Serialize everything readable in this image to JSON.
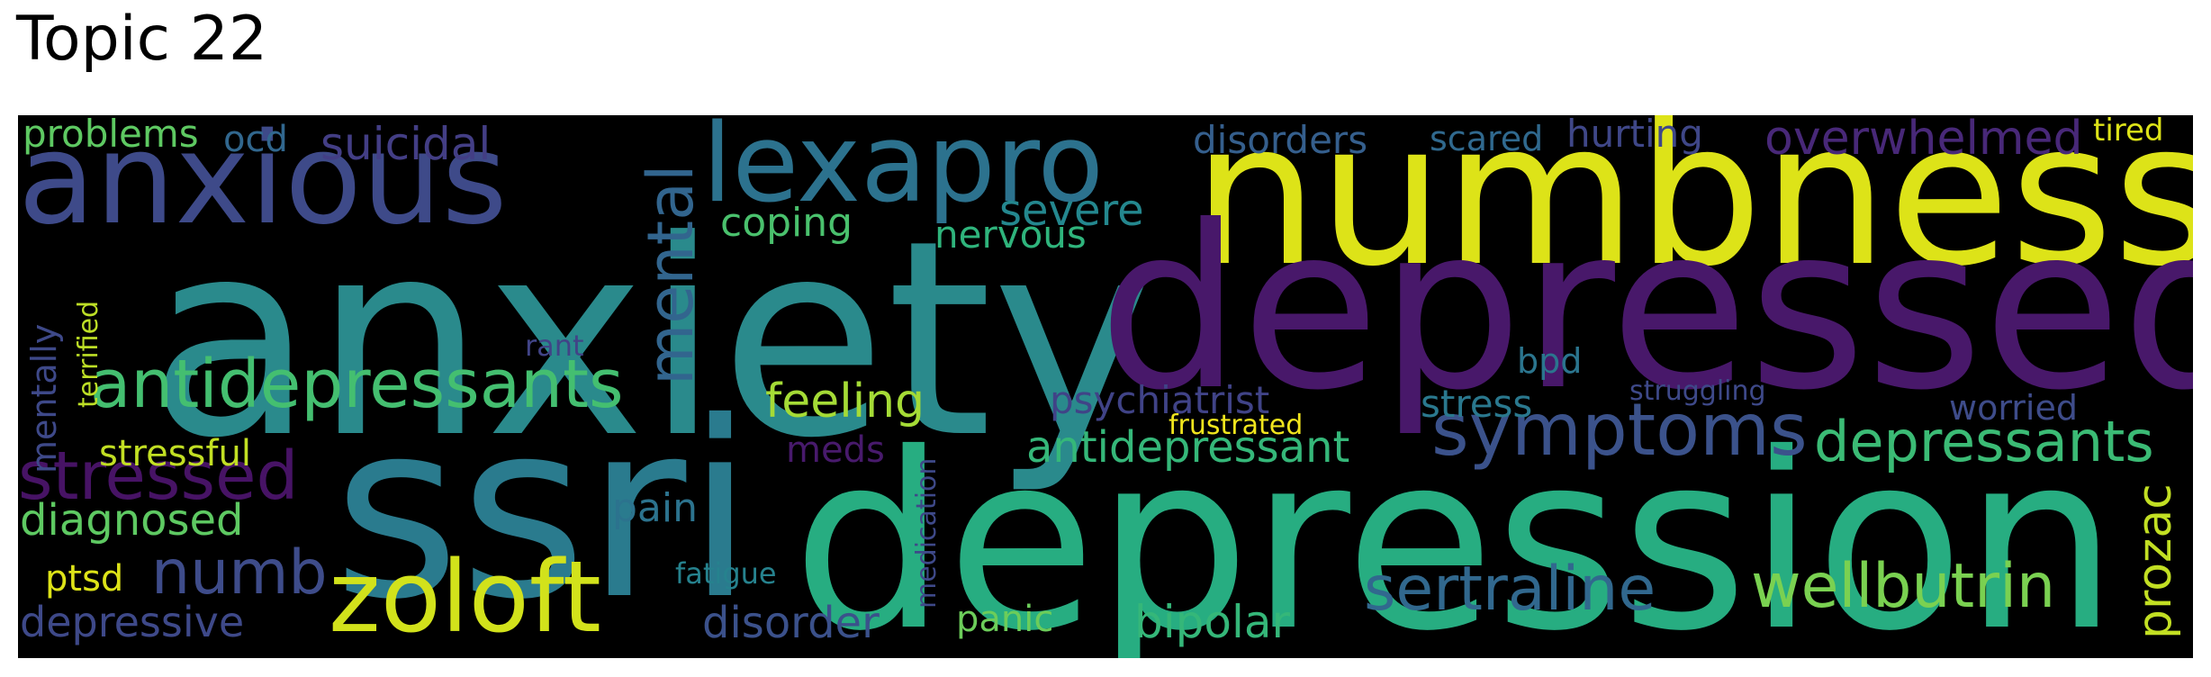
{
  "title": "Topic 22",
  "words": [
    {
      "text": "anxiety",
      "color": "#2a8a8c"
    },
    {
      "text": "numbness",
      "color": "#dde318"
    },
    {
      "text": "depressed",
      "color": "#48186a"
    },
    {
      "text": "depression",
      "color": "#27ad81"
    },
    {
      "text": "ssri",
      "color": "#2a7b8e"
    },
    {
      "text": "anxious",
      "color": "#3e4a89"
    },
    {
      "text": "lexapro",
      "color": "#2c728e"
    },
    {
      "text": "zoloft",
      "color": "#d2e21b"
    },
    {
      "text": "mental",
      "color": "#32658e"
    },
    {
      "text": "antidepressants",
      "color": "#44bf70"
    },
    {
      "text": "symptoms",
      "color": "#3b528b"
    },
    {
      "text": "stressed",
      "color": "#471365"
    },
    {
      "text": "sertraline",
      "color": "#31688e"
    },
    {
      "text": "wellbutrin",
      "color": "#7ad151"
    },
    {
      "text": "depressants",
      "color": "#3bbb75"
    },
    {
      "text": "antidepressant",
      "color": "#35b779"
    },
    {
      "text": "numb",
      "color": "#3e4c8a"
    },
    {
      "text": "feeling",
      "color": "#a5db36"
    },
    {
      "text": "suicidal",
      "color": "#433e85"
    },
    {
      "text": "overwhelmed",
      "color": "#482878"
    },
    {
      "text": "disorders",
      "color": "#355f8d"
    },
    {
      "text": "severe",
      "color": "#24878e"
    },
    {
      "text": "bipolar",
      "color": "#35b779"
    },
    {
      "text": "disorder",
      "color": "#3b518b"
    },
    {
      "text": "diagnosed",
      "color": "#5ec962"
    },
    {
      "text": "depressive",
      "color": "#3e4989"
    },
    {
      "text": "psychiatrist",
      "color": "#404387"
    },
    {
      "text": "prozac",
      "color": "#c2df23"
    },
    {
      "text": "coping",
      "color": "#4ac16d"
    },
    {
      "text": "nervous",
      "color": "#2fb47c"
    },
    {
      "text": "hurting",
      "color": "#3f4788"
    },
    {
      "text": "problems",
      "color": "#5ec962"
    },
    {
      "text": "stress",
      "color": "#2a788e"
    },
    {
      "text": "worried",
      "color": "#3e4c8a"
    },
    {
      "text": "scared",
      "color": "#30698e"
    },
    {
      "text": "mentally",
      "color": "#3e4989"
    },
    {
      "text": "pain",
      "color": "#2c738e"
    },
    {
      "text": "ocd",
      "color": "#31678e"
    },
    {
      "text": "panic",
      "color": "#6ccd5a"
    },
    {
      "text": "stressful",
      "color": "#c2df23"
    },
    {
      "text": "meds",
      "color": "#481a6c"
    },
    {
      "text": "ptsd",
      "color": "#dde318"
    },
    {
      "text": "bpd",
      "color": "#2b758e"
    },
    {
      "text": "tired",
      "color": "#dde318"
    },
    {
      "text": "terrified",
      "color": "#bddf26"
    },
    {
      "text": "medication",
      "color": "#3e4989"
    },
    {
      "text": "fatigue",
      "color": "#26828e"
    },
    {
      "text": "frustrated",
      "color": "#f1e51d"
    },
    {
      "text": "struggling",
      "color": "#3e4989"
    },
    {
      "text": "rant",
      "color": "#414487"
    }
  ]
}
